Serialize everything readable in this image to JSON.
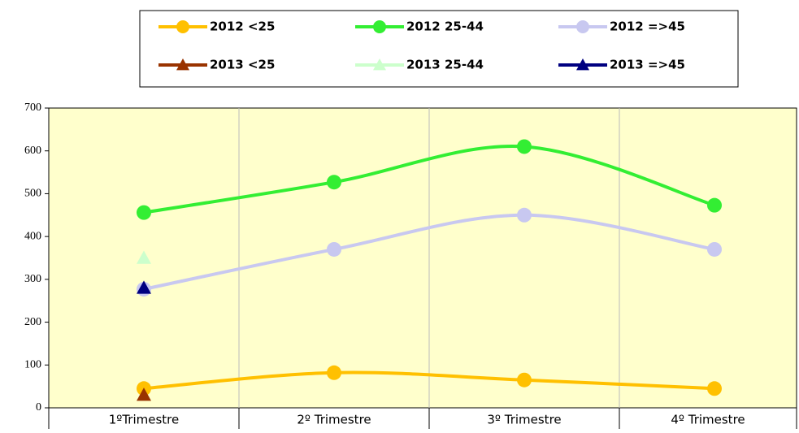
{
  "chart_data": {
    "type": "line",
    "categories": [
      "1ºTrimestre",
      "2º Trimestre",
      "3º Trimestre",
      "4º Trimestre"
    ],
    "series": [
      {
        "name": "2012 <25",
        "color": "#FFC000",
        "marker": "circle",
        "values": [
          45,
          82,
          65,
          45
        ]
      },
      {
        "name": "2012 25-44",
        "color": "#33EE33",
        "marker": "circle",
        "values": [
          456,
          527,
          610,
          473
        ]
      },
      {
        "name": "2012 =>45",
        "color": "#C8C8F0",
        "marker": "circle",
        "values": [
          277,
          370,
          450,
          370
        ]
      },
      {
        "name": "2013 <25",
        "color": "#993300",
        "marker": "triangle",
        "values": [
          30,
          null,
          null,
          null
        ]
      },
      {
        "name": "2013 25-44",
        "color": "#CCFFCC",
        "marker": "triangle",
        "values": [
          350,
          null,
          null,
          null
        ]
      },
      {
        "name": "2013 =>45",
        "color": "#000080",
        "marker": "triangle",
        "values": [
          280,
          null,
          null,
          null
        ]
      }
    ],
    "ylim": [
      0,
      700
    ],
    "yticks": [
      0,
      100,
      200,
      300,
      400,
      500,
      600,
      700
    ],
    "grid": true,
    "legend": "top"
  }
}
